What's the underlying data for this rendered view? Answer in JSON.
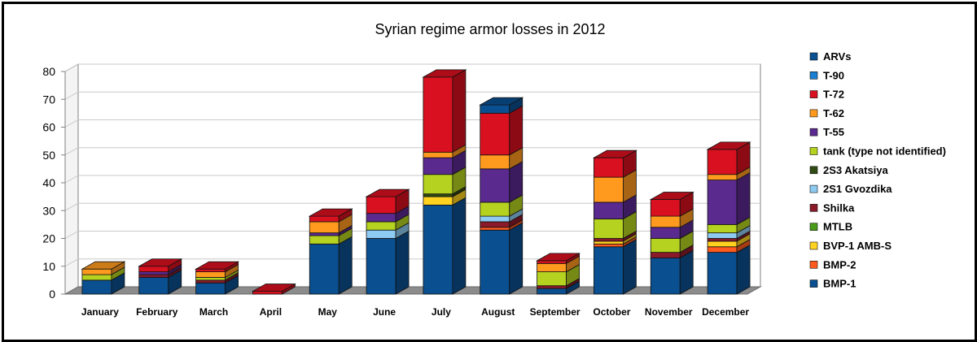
{
  "chart_data": {
    "type": "bar",
    "stacked": true,
    "three_d": true,
    "title": "Syrian regime armor losses in 2012",
    "xlabel": "",
    "ylabel": "",
    "ylim": [
      0,
      80
    ],
    "yticks": [
      "0",
      "10",
      "20",
      "30",
      "40",
      "50",
      "60",
      "70",
      "80"
    ],
    "grid": true,
    "legend_position": "right",
    "categories": [
      "January",
      "February",
      "March",
      "April",
      "May",
      "June",
      "July",
      "August",
      "September",
      "October",
      "November",
      "December"
    ],
    "series": [
      {
        "name": "BMP-1",
        "color": "#0a4f8f",
        "values": [
          5,
          6,
          4,
          0,
          18,
          20,
          32,
          23,
          2,
          17,
          13,
          15
        ]
      },
      {
        "name": "BMP-2",
        "color": "#ff5a1f",
        "values": [
          0,
          0,
          0,
          0,
          0,
          0,
          0,
          1,
          0,
          1,
          0,
          2
        ]
      },
      {
        "name": "BVP-1 AMB-S",
        "color": "#ffd21f",
        "values": [
          0,
          0,
          0,
          0,
          0,
          0,
          3,
          0,
          0,
          1,
          0,
          2
        ]
      },
      {
        "name": "MTLB",
        "color": "#4a9a1a",
        "values": [
          0,
          0,
          0,
          0,
          0,
          0,
          0,
          0,
          0,
          0,
          0,
          0
        ]
      },
      {
        "name": "Shilka",
        "color": "#8a1a2a",
        "values": [
          0,
          1,
          1,
          0,
          0,
          0,
          0,
          2,
          1,
          1,
          2,
          1
        ]
      },
      {
        "name": "2S1 Gvozdika",
        "color": "#8ecbf2",
        "values": [
          0,
          0,
          0,
          0,
          0,
          3,
          0,
          2,
          0,
          0,
          0,
          2
        ]
      },
      {
        "name": "2S3 Akatsiya",
        "color": "#2f4a12",
        "values": [
          0,
          0,
          0,
          0,
          0,
          0,
          1,
          0,
          0,
          0,
          0,
          0
        ]
      },
      {
        "name": "tank (type not identified)",
        "color": "#b4d21f",
        "values": [
          2,
          0,
          1,
          0,
          3,
          3,
          7,
          5,
          5,
          7,
          5,
          3
        ]
      },
      {
        "name": "T-55",
        "color": "#5a2a8f",
        "values": [
          0,
          1,
          0,
          0,
          1,
          3,
          6,
          12,
          0,
          6,
          4,
          16
        ]
      },
      {
        "name": "T-62",
        "color": "#ff9a1f",
        "values": [
          2,
          0,
          2,
          0,
          4,
          0,
          2,
          5,
          3,
          9,
          4,
          2
        ]
      },
      {
        "name": "T-72",
        "color": "#d8101f",
        "values": [
          0,
          2,
          1,
          1,
          2,
          6,
          27,
          15,
          1,
          7,
          6,
          9
        ]
      },
      {
        "name": "T-90",
        "color": "#1a7fd0",
        "values": [
          0,
          0,
          0,
          0,
          0,
          0,
          0,
          0,
          0,
          0,
          0,
          0
        ]
      },
      {
        "name": "ARVs",
        "color": "#0a4f8f",
        "values": [
          0,
          0,
          0,
          0,
          0,
          0,
          0,
          3,
          0,
          0,
          0,
          0
        ]
      }
    ],
    "legend_order": [
      "ARVs",
      "T-90",
      "T-72",
      "T-62",
      "T-55",
      "tank (type not identified)",
      "2S3 Akatsiya",
      "2S1 Gvozdika",
      "Shilka",
      "MTLB",
      "BVP-1 AMB-S",
      "BMP-2",
      "BMP-1"
    ],
    "colors": {
      "back_wall": "#ffffff",
      "floor": "#8c8c8c",
      "grid": "#c8c8c8",
      "axis": "#808080",
      "frame": "#000000"
    }
  }
}
